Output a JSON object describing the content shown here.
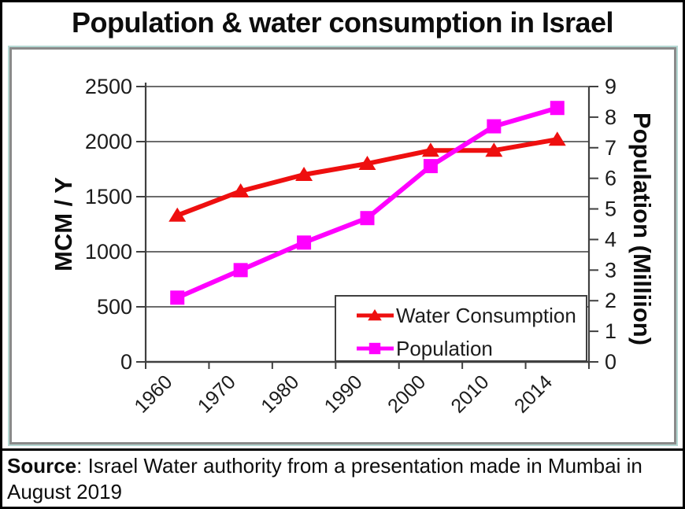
{
  "title": "Population & water consumption in Israel",
  "source": {
    "label": "Source",
    "rest": ": Israel Water authority from a presentation made in Mumbai in August 2019"
  },
  "chart_data": {
    "type": "line",
    "title": "Population & water consumption in Israel",
    "categories": [
      "1960",
      "1970",
      "1980",
      "1990",
      "2000",
      "2010",
      "2014"
    ],
    "series": [
      {
        "name": "Water Consumption",
        "axis": "left",
        "color": "#ee0f0f",
        "marker": "triangle",
        "values": [
          1330,
          1550,
          1700,
          1800,
          1920,
          1920,
          2020
        ]
      },
      {
        "name": "Population",
        "axis": "right",
        "color": "#ff00ff",
        "marker": "square",
        "values": [
          2.1,
          3.0,
          3.9,
          4.7,
          6.4,
          7.7,
          8.3
        ]
      }
    ],
    "left_axis": {
      "label": "MCM / Y",
      "min": 0,
      "max": 2500,
      "step": 500,
      "ticks": [
        "0",
        "500",
        "1000",
        "1500",
        "2000",
        "2500"
      ]
    },
    "right_axis": {
      "label": "Population (Milliion)",
      "min": 0,
      "max": 9,
      "step": 1,
      "ticks": [
        "0",
        "1",
        "2",
        "3",
        "4",
        "5",
        "6",
        "7",
        "8",
        "9"
      ]
    },
    "grid": "horizontal",
    "legend": {
      "position": "inside-bottom-right",
      "entries": [
        "Water Consumption",
        "Population"
      ]
    },
    "colors": {
      "grid": "#575757",
      "axis": "#404040",
      "text": "#1c1c1c",
      "panel_frame": "#8a8a8a",
      "panel_accent": "#b5d8d3"
    }
  }
}
